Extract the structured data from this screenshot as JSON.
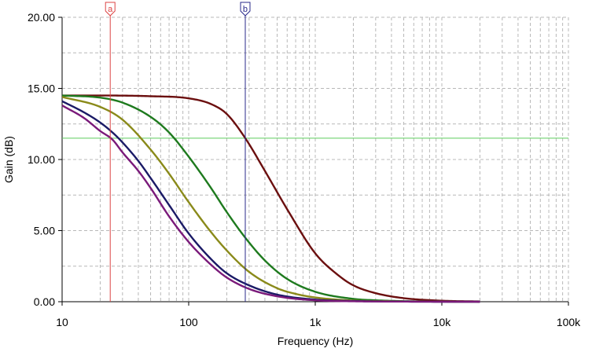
{
  "chart_data": {
    "type": "line",
    "title": "",
    "xlabel": "Frequency (Hz)",
    "ylabel": "Gain (dB)",
    "x_scale": "log",
    "xlim": [
      10,
      100000
    ],
    "ylim": [
      0,
      20
    ],
    "x_ticks": [
      {
        "value": 10,
        "label": "10"
      },
      {
        "value": 100,
        "label": "100"
      },
      {
        "value": 1000,
        "label": "1k"
      },
      {
        "value": 10000,
        "label": "10k"
      },
      {
        "value": 100000,
        "label": "100k"
      }
    ],
    "y_ticks": [
      {
        "value": 0,
        "label": "0.00"
      },
      {
        "value": 5,
        "label": "5.00"
      },
      {
        "value": 10,
        "label": "10.00"
      },
      {
        "value": 15,
        "label": "15.00"
      },
      {
        "value": 20,
        "label": "20.00"
      }
    ],
    "grid": true,
    "colors": {
      "grid": "#b8b8b8",
      "axis": "#000000",
      "reference_line": "#5ccc5c",
      "cursor_a": "#dd4444",
      "cursor_b": "#2a2a8a"
    },
    "series": [
      {
        "color": "#6b0f0f",
        "x": [
          10,
          20,
          50,
          100,
          150,
          200,
          280,
          400,
          600,
          1000,
          1500,
          2000,
          3000,
          5000,
          10000,
          20000
        ],
        "y": [
          14.5,
          14.5,
          14.45,
          14.3,
          13.9,
          13.2,
          11.5,
          9.2,
          6.5,
          3.4,
          1.9,
          1.15,
          0.6,
          0.25,
          0.07,
          0.02
        ]
      },
      {
        "color": "#1e7a1e",
        "x": [
          10,
          20,
          30,
          50,
          70,
          100,
          150,
          200,
          280,
          400,
          600,
          1000,
          2000,
          3000,
          5000,
          10000,
          20000
        ],
        "y": [
          14.5,
          14.35,
          14.0,
          13.0,
          11.9,
          10.2,
          8.0,
          6.3,
          4.5,
          2.9,
          1.6,
          0.7,
          0.2,
          0.1,
          0.04,
          0.01,
          0.0
        ]
      },
      {
        "color": "#8a8a1a",
        "x": [
          10,
          20,
          30,
          50,
          70,
          100,
          150,
          200,
          300,
          500,
          700,
          1000,
          2000,
          5000,
          10000,
          20000
        ],
        "y": [
          14.4,
          13.7,
          12.8,
          10.7,
          9.0,
          7.0,
          4.9,
          3.6,
          2.1,
          0.95,
          0.55,
          0.3,
          0.08,
          0.02,
          0.01,
          0.0
        ]
      },
      {
        "color": "#1a1a66",
        "x": [
          10,
          15,
          20,
          25,
          30,
          40,
          50,
          70,
          100,
          150,
          200,
          300,
          500,
          1000,
          2000,
          5000,
          10000,
          20000
        ],
        "y": [
          14.1,
          13.3,
          12.6,
          11.9,
          11.2,
          9.9,
          8.7,
          6.8,
          4.8,
          3.0,
          2.0,
          1.15,
          0.5,
          0.15,
          0.05,
          0.01,
          0.0,
          0.0
        ]
      },
      {
        "color": "#7a1a7a",
        "x": [
          10,
          15,
          20,
          25,
          30,
          40,
          50,
          70,
          100,
          150,
          200,
          300,
          500,
          1000,
          2000,
          5000,
          10000,
          20000
        ],
        "y": [
          13.8,
          12.9,
          12.0,
          11.4,
          10.5,
          9.2,
          8.0,
          6.0,
          4.2,
          2.6,
          1.7,
          0.9,
          0.38,
          0.1,
          0.03,
          0.01,
          0.0,
          0.0
        ]
      }
    ],
    "reference_line_y": 11.5,
    "cursors": [
      {
        "label": "a",
        "x": 24
      },
      {
        "label": "b",
        "x": 280
      }
    ]
  }
}
